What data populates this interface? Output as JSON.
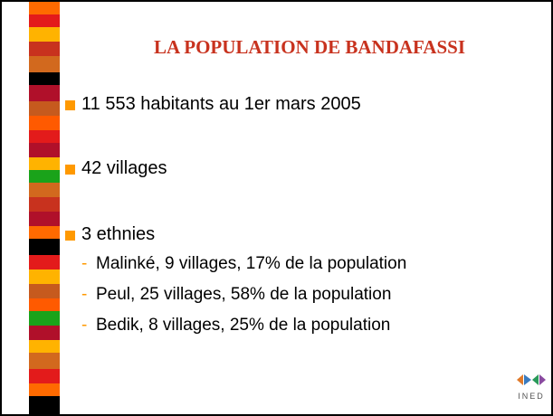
{
  "title": "LA POPULATION DE BANDAFASSI",
  "bullets": [
    {
      "text": "11 553 habitants au 1er mars 2005"
    },
    {
      "text": "42 villages"
    },
    {
      "text": "3 ethnies",
      "items": [
        "Malinké, 9 villages, 17% de la population",
        "Peul, 25 villages, 58% de la population",
        "Bedik, 8 villages, 25% de la population"
      ]
    }
  ],
  "logo": "INED"
}
